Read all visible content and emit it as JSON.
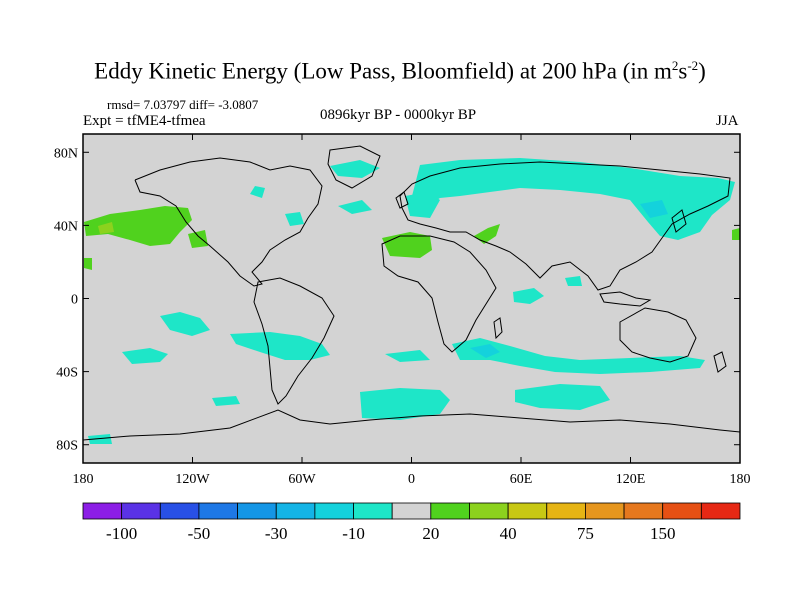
{
  "title": {
    "main": "Eddy Kinetic Energy (Low Pass, Bloomfield) at 200 hPa (in m",
    "sup1": "2",
    "mid": "s",
    "sup2": "-2",
    "end": ")"
  },
  "stats": "rmsd= 7.03797 diff= -3.0807",
  "experiment": "Expt = tfME4-tfmea",
  "period": "0896kyr BP - 0000kyr BP",
  "season": "JJA",
  "map": {
    "land_color": "#d3d3d3",
    "lat_ticks": [
      {
        "lat": 80,
        "label": "80N"
      },
      {
        "lat": 40,
        "label": "40N"
      },
      {
        "lat": 0,
        "label": "0"
      },
      {
        "lat": -40,
        "label": "40S"
      },
      {
        "lat": -80,
        "label": "80S"
      }
    ],
    "lon_ticks": [
      {
        "lon": -180,
        "label": "180"
      },
      {
        "lon": -120,
        "label": "120W"
      },
      {
        "lon": -60,
        "label": "60W"
      },
      {
        "lon": 0,
        "label": "0"
      },
      {
        "lon": 60,
        "label": "60E"
      },
      {
        "lon": 120,
        "label": "120E"
      },
      {
        "lon": 180,
        "label": "180"
      }
    ]
  },
  "colorbar": {
    "colors": [
      "#8c1ee6",
      "#5a32e6",
      "#2850e6",
      "#1e78e6",
      "#1496e6",
      "#14b4e6",
      "#14d2dc",
      "#1ee6c8",
      "#d3d3d3",
      "#50d21e",
      "#8cd21e",
      "#c8c814",
      "#e6b414",
      "#e6961e",
      "#e6781e",
      "#e65014",
      "#e62814"
    ],
    "labels": [
      {
        "after_box": 1,
        "text": "-100"
      },
      {
        "after_box": 3,
        "text": "-50"
      },
      {
        "after_box": 5,
        "text": "-30"
      },
      {
        "after_box": 7,
        "text": "-10"
      },
      {
        "after_box": 9,
        "text": "20"
      },
      {
        "after_box": 11,
        "text": "40"
      },
      {
        "after_box": 13,
        "text": "75"
      },
      {
        "after_box": 15,
        "text": "150"
      }
    ]
  }
}
